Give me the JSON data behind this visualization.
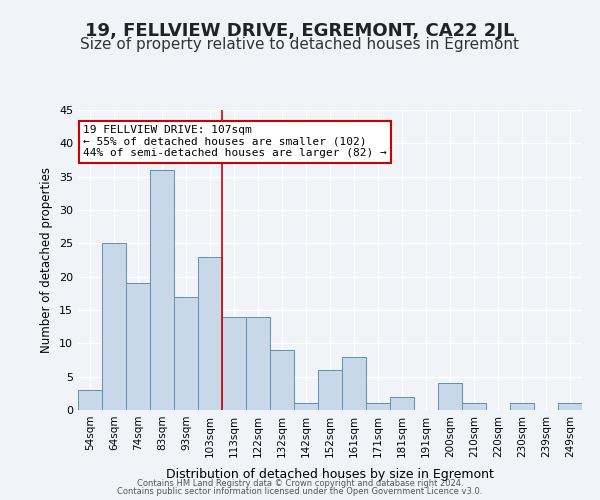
{
  "title1": "19, FELLVIEW DRIVE, EGREMONT, CA22 2JL",
  "title2": "Size of property relative to detached houses in Egremont",
  "xlabel": "Distribution of detached houses by size in Egremont",
  "ylabel": "Number of detached properties",
  "bar_labels": [
    "54sqm",
    "64sqm",
    "74sqm",
    "83sqm",
    "93sqm",
    "103sqm",
    "113sqm",
    "122sqm",
    "132sqm",
    "142sqm",
    "152sqm",
    "161sqm",
    "171sqm",
    "181sqm",
    "191sqm",
    "200sqm",
    "210sqm",
    "220sqm",
    "230sqm",
    "239sqm",
    "249sqm"
  ],
  "bar_heights": [
    3,
    25,
    19,
    36,
    17,
    23,
    14,
    14,
    9,
    1,
    6,
    8,
    1,
    2,
    0,
    4,
    1,
    0,
    1,
    0,
    1
  ],
  "bar_color": "#c8d8e8",
  "bar_edge_color": "#6090b0",
  "ylim": [
    0,
    45
  ],
  "yticks": [
    0,
    5,
    10,
    15,
    20,
    25,
    30,
    35,
    40,
    45
  ],
  "property_line_x": 5.5,
  "property_size": "107sqm",
  "annotation_line1": "19 FELLVIEW DRIVE: 107sqm",
  "annotation_line2": "← 55% of detached houses are smaller (102)",
  "annotation_line3": "44% of semi-detached houses are larger (82) →",
  "annotation_box_color": "#ffffff",
  "annotation_box_edge_color": "#cc0000",
  "footer1": "Contains HM Land Registry data © Crown copyright and database right 2024.",
  "footer2": "Contains public sector information licensed under the Open Government Licence v3.0.",
  "background_color": "#f0f4f8",
  "grid_color": "#ffffff",
  "title1_fontsize": 13,
  "title2_fontsize": 11
}
